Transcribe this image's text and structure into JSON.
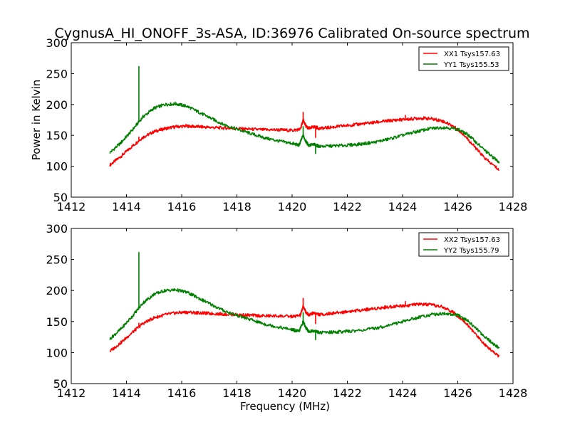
{
  "figure": {
    "title": "CygnusA_HI_ONOFF_3s-ASA, ID:36976 Calibrated On-source spectrum"
  },
  "chart_data": [
    {
      "type": "line",
      "title": "CygnusA_HI_ONOFF_3s-ASA, ID:36976 Calibrated On-source spectrum",
      "xlabel": "",
      "ylabel": "Power in Kelvin",
      "xlim": [
        1412,
        1428
      ],
      "ylim": [
        50,
        300
      ],
      "xticks": [
        "1412",
        "1414",
        "1416",
        "1418",
        "1420",
        "1422",
        "1424",
        "1426",
        "1428"
      ],
      "yticks": [
        "50",
        "100",
        "150",
        "200",
        "250",
        "300"
      ],
      "grid": false,
      "legend_position": "top-right",
      "series": [
        {
          "name": "XX1 Tsys157.63",
          "color": "#ff0000",
          "points": [
            [
              1413.4,
              102
            ],
            [
              1413.8,
              116
            ],
            [
              1414.2,
              132
            ],
            [
              1414.6,
              147
            ],
            [
              1415.0,
              156
            ],
            [
              1415.4,
              161
            ],
            [
              1415.8,
              164
            ],
            [
              1416.2,
              165
            ],
            [
              1416.6,
              164
            ],
            [
              1417.0,
              163
            ],
            [
              1417.5,
              162
            ],
            [
              1418.0,
              161
            ],
            [
              1418.5,
              160
            ],
            [
              1419.0,
              159
            ],
            [
              1419.5,
              159
            ],
            [
              1420.0,
              158
            ],
            [
              1420.3,
              160
            ],
            [
              1420.4,
              175
            ],
            [
              1420.5,
              165
            ],
            [
              1420.6,
              161
            ],
            [
              1420.8,
              164
            ],
            [
              1421.0,
              161
            ],
            [
              1421.4,
              163
            ],
            [
              1421.8,
              165
            ],
            [
              1422.2,
              167
            ],
            [
              1422.6,
              169
            ],
            [
              1423.0,
              171
            ],
            [
              1423.4,
              173
            ],
            [
              1423.8,
              175
            ],
            [
              1424.2,
              176
            ],
            [
              1424.6,
              178
            ],
            [
              1425.0,
              177
            ],
            [
              1425.4,
              174
            ],
            [
              1425.8,
              166
            ],
            [
              1426.2,
              152
            ],
            [
              1426.6,
              132
            ],
            [
              1427.0,
              112
            ],
            [
              1427.5,
              94
            ]
          ],
          "spikes": [
            [
              1414.45,
              148
            ],
            [
              1420.4,
              188
            ],
            [
              1420.85,
              146
            ],
            [
              1424.1,
              183
            ]
          ]
        },
        {
          "name": "YY1 Tsys155.53",
          "color": "#008000",
          "points": [
            [
              1413.4,
              122
            ],
            [
              1413.8,
              138
            ],
            [
              1414.2,
              158
            ],
            [
              1414.6,
              180
            ],
            [
              1415.0,
              194
            ],
            [
              1415.4,
              200
            ],
            [
              1415.8,
              201
            ],
            [
              1416.2,
              197
            ],
            [
              1416.6,
              188
            ],
            [
              1417.0,
              179
            ],
            [
              1417.5,
              168
            ],
            [
              1418.0,
              160
            ],
            [
              1418.5,
              153
            ],
            [
              1419.0,
              146
            ],
            [
              1419.5,
              141
            ],
            [
              1420.0,
              137
            ],
            [
              1420.25,
              134
            ],
            [
              1420.4,
              150
            ],
            [
              1420.5,
              140
            ],
            [
              1420.6,
              134
            ],
            [
              1420.8,
              135
            ],
            [
              1421.0,
              132
            ],
            [
              1421.5,
              133
            ],
            [
              1422.0,
              134
            ],
            [
              1422.5,
              136
            ],
            [
              1423.0,
              139
            ],
            [
              1423.5,
              144
            ],
            [
              1424.0,
              150
            ],
            [
              1424.5,
              156
            ],
            [
              1425.0,
              161
            ],
            [
              1425.5,
              163
            ],
            [
              1426.0,
              160
            ],
            [
              1426.4,
              150
            ],
            [
              1426.8,
              133
            ],
            [
              1427.2,
              117
            ],
            [
              1427.5,
              107
            ]
          ],
          "spikes": [
            [
              1414.45,
              262
            ],
            [
              1420.4,
              165
            ],
            [
              1420.85,
              120
            ]
          ]
        }
      ]
    },
    {
      "type": "line",
      "title": "",
      "xlabel": "Frequency (MHz)",
      "ylabel": "",
      "xlim": [
        1412,
        1428
      ],
      "ylim": [
        50,
        300
      ],
      "xticks": [
        "1412",
        "1414",
        "1416",
        "1418",
        "1420",
        "1422",
        "1424",
        "1426",
        "1428"
      ],
      "yticks": [
        "50",
        "100",
        "150",
        "200",
        "250",
        "300"
      ],
      "grid": false,
      "legend_position": "top-right",
      "series": [
        {
          "name": "XX2 Tsys157.63",
          "color": "#ff0000",
          "points": [
            [
              1413.4,
              102
            ],
            [
              1413.8,
              116
            ],
            [
              1414.2,
              132
            ],
            [
              1414.6,
              147
            ],
            [
              1415.0,
              156
            ],
            [
              1415.4,
              161
            ],
            [
              1415.8,
              164
            ],
            [
              1416.2,
              165
            ],
            [
              1416.6,
              164
            ],
            [
              1417.0,
              163
            ],
            [
              1417.5,
              162
            ],
            [
              1418.0,
              161
            ],
            [
              1418.5,
              160
            ],
            [
              1419.0,
              159
            ],
            [
              1419.5,
              159
            ],
            [
              1420.0,
              158
            ],
            [
              1420.3,
              160
            ],
            [
              1420.4,
              175
            ],
            [
              1420.5,
              165
            ],
            [
              1420.6,
              161
            ],
            [
              1420.8,
              164
            ],
            [
              1421.0,
              161
            ],
            [
              1421.4,
              163
            ],
            [
              1421.8,
              165
            ],
            [
              1422.2,
              167
            ],
            [
              1422.6,
              169
            ],
            [
              1423.0,
              171
            ],
            [
              1423.4,
              173
            ],
            [
              1423.8,
              175
            ],
            [
              1424.2,
              176
            ],
            [
              1424.6,
              178
            ],
            [
              1425.0,
              177
            ],
            [
              1425.4,
              174
            ],
            [
              1425.8,
              166
            ],
            [
              1426.2,
              152
            ],
            [
              1426.6,
              132
            ],
            [
              1427.0,
              112
            ],
            [
              1427.5,
              94
            ]
          ],
          "spikes": [
            [
              1414.45,
              148
            ],
            [
              1420.4,
              188
            ],
            [
              1420.85,
              146
            ],
            [
              1424.1,
              183
            ]
          ]
        },
        {
          "name": "YY2 Tsys155.79",
          "color": "#008000",
          "points": [
            [
              1413.4,
              122
            ],
            [
              1413.8,
              138
            ],
            [
              1414.2,
              158
            ],
            [
              1414.6,
              180
            ],
            [
              1415.0,
              194
            ],
            [
              1415.4,
              200
            ],
            [
              1415.8,
              201
            ],
            [
              1416.2,
              197
            ],
            [
              1416.6,
              188
            ],
            [
              1417.0,
              179
            ],
            [
              1417.5,
              168
            ],
            [
              1418.0,
              160
            ],
            [
              1418.5,
              153
            ],
            [
              1419.0,
              146
            ],
            [
              1419.5,
              141
            ],
            [
              1420.0,
              137
            ],
            [
              1420.25,
              134
            ],
            [
              1420.4,
              150
            ],
            [
              1420.5,
              140
            ],
            [
              1420.6,
              134
            ],
            [
              1420.8,
              135
            ],
            [
              1421.0,
              132
            ],
            [
              1421.5,
              133
            ],
            [
              1422.0,
              134
            ],
            [
              1422.5,
              136
            ],
            [
              1423.0,
              139
            ],
            [
              1423.5,
              144
            ],
            [
              1424.0,
              150
            ],
            [
              1424.5,
              156
            ],
            [
              1425.0,
              161
            ],
            [
              1425.5,
              163
            ],
            [
              1426.0,
              160
            ],
            [
              1426.4,
              150
            ],
            [
              1426.8,
              133
            ],
            [
              1427.2,
              117
            ],
            [
              1427.5,
              107
            ]
          ],
          "spikes": [
            [
              1414.45,
              262
            ],
            [
              1420.4,
              165
            ],
            [
              1420.85,
              120
            ]
          ]
        }
      ]
    }
  ]
}
